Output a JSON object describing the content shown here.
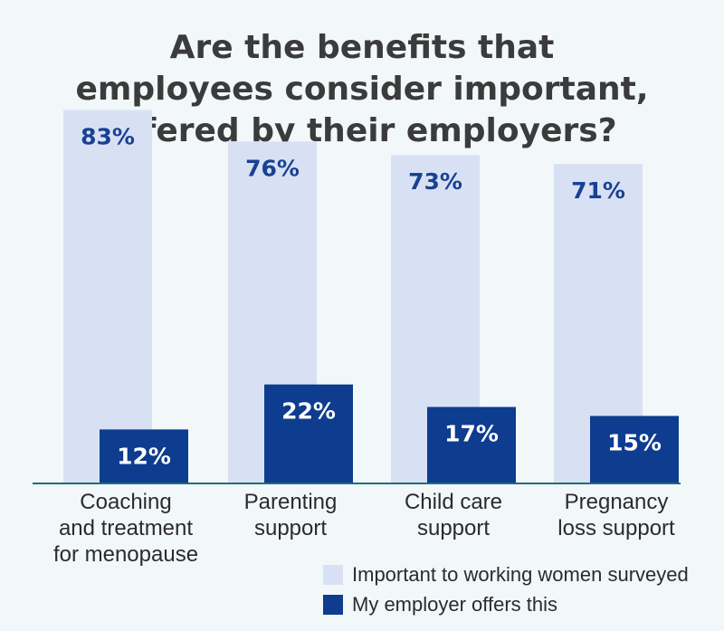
{
  "chart_data": {
    "type": "bar",
    "title_lines": [
      "Are the benefits that",
      "employees consider important,",
      "offered by their employers?"
    ],
    "categories": [
      [
        "Coaching",
        "and treatment",
        "for menopause"
      ],
      [
        "Parenting",
        "support"
      ],
      [
        "Child care",
        "support"
      ],
      [
        "Pregnancy",
        "loss support"
      ]
    ],
    "series": [
      {
        "name": "Important to working women surveyed",
        "values": [
          83,
          76,
          73,
          71
        ],
        "labels": [
          "83%",
          "76%",
          "73%",
          "71%"
        ],
        "color": "#d8e1f4",
        "label_color": "#1a4193"
      },
      {
        "name": "My employer offers this",
        "values": [
          12,
          22,
          17,
          15
        ],
        "labels": [
          "12%",
          "22%",
          "17%",
          "15%"
        ],
        "color": "#0e3c8f",
        "label_color": "#ffffff"
      }
    ],
    "ylim": [
      0,
      100
    ],
    "grid": false,
    "legend_position": "bottom-right",
    "axis_color": "#1e6e78"
  }
}
